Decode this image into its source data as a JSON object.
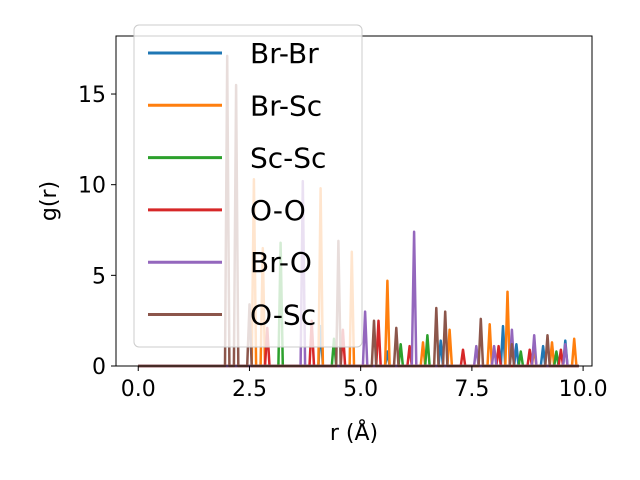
{
  "chart_data": {
    "type": "line",
    "xlabel": "r (Å)",
    "ylabel": "g(r)",
    "xlim": [
      -0.5,
      10.2
    ],
    "ylim": [
      0,
      18.2
    ],
    "xticks": [
      0.0,
      2.5,
      5.0,
      7.5,
      10.0
    ],
    "xtick_labels": [
      "0.0",
      "2.5",
      "5.0",
      "7.5",
      "10.0"
    ],
    "yticks": [
      0,
      5,
      10,
      15
    ],
    "ytick_labels": [
      "0",
      "5",
      "10",
      "15"
    ],
    "grid": false,
    "legend_position": "top-left",
    "series": [
      {
        "name": "Br-Br",
        "color": "#1f77b4",
        "peaks": [
          [
            4.1,
            2.2
          ],
          [
            5.6,
            0.8
          ],
          [
            6.8,
            1.4
          ],
          [
            8.2,
            2.2
          ],
          [
            8.5,
            1.2
          ],
          [
            9.1,
            1.1
          ],
          [
            9.6,
            1.4
          ]
        ]
      },
      {
        "name": "Br-Sc",
        "color": "#ff7f0e",
        "peaks": [
          [
            2.6,
            10.3
          ],
          [
            2.8,
            6.5
          ],
          [
            4.1,
            9.8
          ],
          [
            4.8,
            6.3
          ],
          [
            5.6,
            4.7
          ],
          [
            6.4,
            1.3
          ],
          [
            7.0,
            2.0
          ],
          [
            7.9,
            2.3
          ],
          [
            8.3,
            4.1
          ],
          [
            8.9,
            1.0
          ],
          [
            9.3,
            1.3
          ],
          [
            9.8,
            1.5
          ]
        ]
      },
      {
        "name": "Sc-Sc",
        "color": "#2ca02c",
        "peaks": [
          [
            3.2,
            6.8
          ],
          [
            4.4,
            1.5
          ],
          [
            5.9,
            1.2
          ],
          [
            6.5,
            1.7
          ],
          [
            8.6,
            0.8
          ],
          [
            9.4,
            0.8
          ]
        ]
      },
      {
        "name": "O-O",
        "color": "#d62728",
        "peaks": [
          [
            2.9,
            2.1
          ],
          [
            3.9,
            2.5
          ],
          [
            4.6,
            2.0
          ],
          [
            5.4,
            2.5
          ],
          [
            6.1,
            1.1
          ],
          [
            7.3,
            0.9
          ],
          [
            8.1,
            1.1
          ],
          [
            8.8,
            0.9
          ],
          [
            9.5,
            0.9
          ]
        ]
      },
      {
        "name": "Br-O",
        "color": "#9467bd",
        "peaks": [
          [
            3.7,
            10.2
          ],
          [
            5.1,
            3.0
          ],
          [
            6.2,
            7.4
          ],
          [
            7.6,
            1.1
          ],
          [
            8.0,
            1.1
          ],
          [
            8.4,
            2.0
          ],
          [
            8.9,
            1.7
          ],
          [
            9.6,
            1.2
          ]
        ]
      },
      {
        "name": "O-Sc",
        "color": "#8c564b",
        "peaks": [
          [
            2.0,
            17.1
          ],
          [
            2.2,
            15.5
          ],
          [
            2.5,
            3.4
          ],
          [
            4.5,
            6.9
          ],
          [
            5.3,
            2.5
          ],
          [
            5.8,
            2.1
          ],
          [
            6.7,
            3.2
          ],
          [
            6.9,
            3.0
          ],
          [
            7.7,
            2.6
          ],
          [
            8.4,
            1.2
          ],
          [
            9.2,
            1.7
          ]
        ]
      }
    ]
  }
}
